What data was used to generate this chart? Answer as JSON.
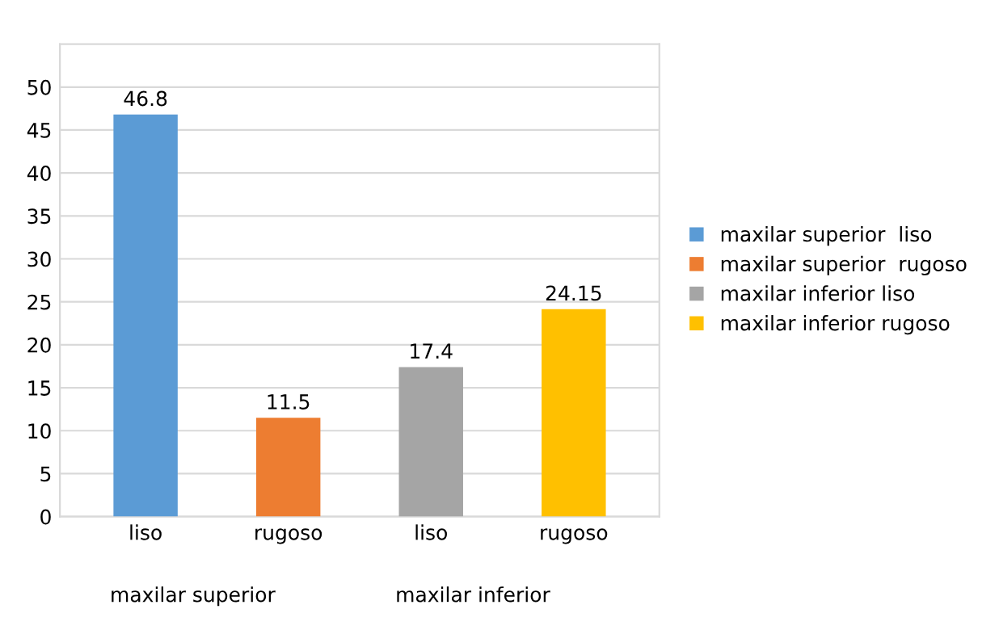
{
  "chart_data": {
    "type": "bar",
    "categories": [
      "liso",
      "rugoso",
      "liso",
      "rugoso"
    ],
    "series": [
      {
        "name": "maxilar superior  liso",
        "color": "#5b9bd5",
        "values": [
          46.8,
          null,
          null,
          null
        ]
      },
      {
        "name": "maxilar superior  rugoso",
        "color": "#ed7d31",
        "values": [
          null,
          11.5,
          null,
          null
        ]
      },
      {
        "name": "maxilar inferior liso",
        "color": "#a5a5a5",
        "values": [
          null,
          null,
          17.4,
          null
        ]
      },
      {
        "name": "maxilar inferior rugoso",
        "color": "#ffc000",
        "values": [
          null,
          null,
          null,
          24.15
        ]
      }
    ],
    "annotations": [
      "maxilar superior",
      "maxilar inferior"
    ],
    "ylim": [
      0,
      55
    ],
    "yticks": [
      0,
      5,
      10,
      15,
      20,
      25,
      30,
      35,
      40,
      45,
      50
    ],
    "grid": "y",
    "legend": "right",
    "data_labels": true
  }
}
